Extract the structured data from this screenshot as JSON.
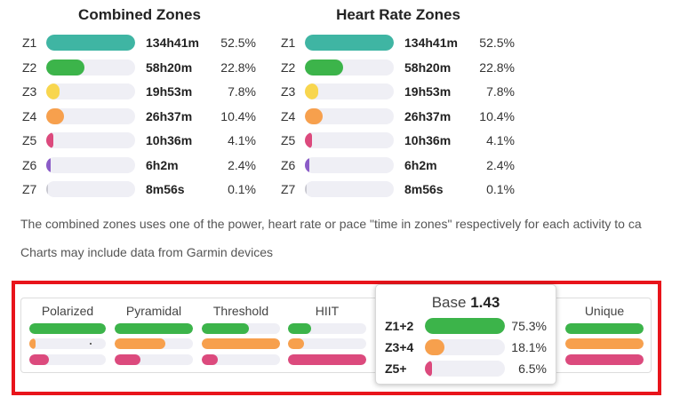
{
  "combined_zones": {
    "title": "Combined Zones",
    "rows": [
      {
        "label": "Z1",
        "time": "134h41m",
        "pct": "52.5%",
        "fraction": 1.0,
        "color": "#3fb5a3"
      },
      {
        "label": "Z2",
        "time": "58h20m",
        "pct": "22.8%",
        "fraction": 0.43,
        "color": "#3cb44a"
      },
      {
        "label": "Z3",
        "time": "19h53m",
        "pct": "7.8%",
        "fraction": 0.15,
        "color": "#f8d64e"
      },
      {
        "label": "Z4",
        "time": "26h37m",
        "pct": "10.4%",
        "fraction": 0.2,
        "color": "#f7a04d"
      },
      {
        "label": "Z5",
        "time": "10h36m",
        "pct": "4.1%",
        "fraction": 0.08,
        "color": "#dc4a7d"
      },
      {
        "label": "Z6",
        "time": "6h2m",
        "pct": "2.4%",
        "fraction": 0.05,
        "color": "#8b5cc7"
      },
      {
        "label": "Z7",
        "time": "8m56s",
        "pct": "0.1%",
        "fraction": 0.01,
        "color": "#c8c8d0"
      }
    ]
  },
  "heart_rate_zones": {
    "title": "Heart Rate Zones",
    "rows": [
      {
        "label": "Z1",
        "time": "134h41m",
        "pct": "52.5%",
        "fraction": 1.0,
        "color": "#3fb5a3"
      },
      {
        "label": "Z2",
        "time": "58h20m",
        "pct": "22.8%",
        "fraction": 0.43,
        "color": "#3cb44a"
      },
      {
        "label": "Z3",
        "time": "19h53m",
        "pct": "7.8%",
        "fraction": 0.15,
        "color": "#f8d64e"
      },
      {
        "label": "Z4",
        "time": "26h37m",
        "pct": "10.4%",
        "fraction": 0.2,
        "color": "#f7a04d"
      },
      {
        "label": "Z5",
        "time": "10h36m",
        "pct": "4.1%",
        "fraction": 0.08,
        "color": "#dc4a7d"
      },
      {
        "label": "Z6",
        "time": "6h2m",
        "pct": "2.4%",
        "fraction": 0.05,
        "color": "#8b5cc7"
      },
      {
        "label": "Z7",
        "time": "8m56s",
        "pct": "0.1%",
        "fraction": 0.01,
        "color": "#c8c8d0"
      }
    ]
  },
  "notes": {
    "combined_explanation": "The combined zones uses one of the power, heart rate or pace \"time in zones\" respectively for each activity to ca",
    "garmin": "Charts may include data from Garmin devices"
  },
  "distribution_models": {
    "colors": {
      "low": "#3cb44a",
      "mid": "#f7a04d",
      "high": "#dc4a7d"
    },
    "models": [
      {
        "name": "Polarized",
        "fractions": [
          1.0,
          0.08,
          0.25
        ]
      },
      {
        "name": "Pyramidal",
        "fractions": [
          1.0,
          0.65,
          0.33
        ]
      },
      {
        "name": "Threshold",
        "fractions": [
          0.6,
          1.0,
          0.2
        ]
      },
      {
        "name": "HIIT",
        "fractions": [
          0.3,
          0.2,
          1.0
        ]
      },
      {
        "name": "Unique",
        "fractions": [
          1.0,
          1.0,
          1.0
        ]
      }
    ],
    "selected": {
      "name": "Base",
      "score": "1.43",
      "rows": [
        {
          "label": "Z1+2",
          "pct": "75.3%",
          "fraction": 1.0,
          "color": "#3cb44a"
        },
        {
          "label": "Z3+4",
          "pct": "18.1%",
          "fraction": 0.24,
          "color": "#f7a04d"
        },
        {
          "label": "Z5+",
          "pct": "6.5%",
          "fraction": 0.09,
          "color": "#dc4a7d"
        }
      ]
    }
  }
}
